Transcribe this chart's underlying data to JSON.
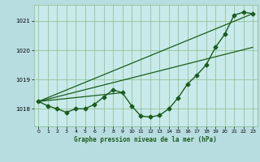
{
  "background_color": "#b8dde0",
  "plot_bg_color": "#c8eaea",
  "grid_color": "#88bb88",
  "line_color": "#1a5c1a",
  "xlabel": "Graphe pression niveau de la mer (hPa)",
  "ylim": [
    1017.4,
    1021.55
  ],
  "xlim": [
    -0.5,
    23.5
  ],
  "yticks": [
    1018,
    1019,
    1020,
    1021
  ],
  "xticks": [
    0,
    1,
    2,
    3,
    4,
    5,
    6,
    7,
    8,
    9,
    10,
    11,
    12,
    13,
    14,
    15,
    16,
    17,
    18,
    19,
    20,
    21,
    22,
    23
  ],
  "series": [
    {
      "x": [
        0,
        1,
        2,
        3,
        4,
        5,
        6,
        7,
        8,
        9,
        10,
        11,
        12,
        13,
        14,
        15,
        16,
        17,
        18,
        19,
        20,
        21,
        22,
        23
      ],
      "y": [
        1018.25,
        1018.1,
        1018.0,
        1017.88,
        1018.0,
        1018.0,
        1018.15,
        1018.4,
        1018.65,
        1018.55,
        1018.1,
        1017.75,
        1017.72,
        1017.78,
        1018.0,
        1018.38,
        1018.85,
        1019.15,
        1019.5,
        1020.1,
        1020.55,
        1021.2,
        1021.3,
        1021.25
      ],
      "marker": "D",
      "markersize": 2.5,
      "linewidth": 1.0,
      "zorder": 4
    },
    {
      "x": [
        0,
        23
      ],
      "y": [
        1018.25,
        1021.25
      ],
      "marker": false,
      "linewidth": 0.9,
      "zorder": 2
    },
    {
      "x": [
        0,
        23
      ],
      "y": [
        1018.25,
        1020.1
      ],
      "marker": false,
      "linewidth": 0.9,
      "zorder": 2
    },
    {
      "x": [
        0,
        9
      ],
      "y": [
        1018.25,
        1018.55
      ],
      "marker": false,
      "linewidth": 0.9,
      "zorder": 2
    }
  ]
}
